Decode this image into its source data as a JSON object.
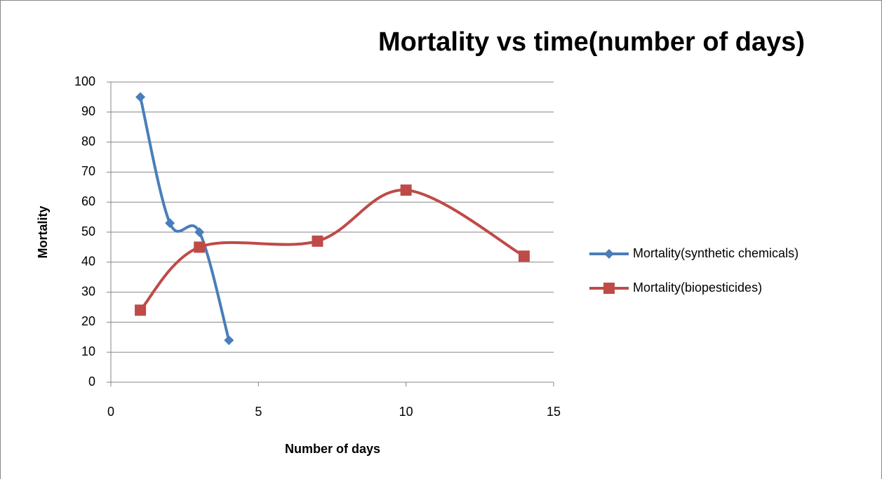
{
  "chart_data": {
    "type": "line",
    "smooth": true,
    "title": "Mortality vs time(number of days)",
    "xlabel": "Number of days",
    "ylabel": "Mortality",
    "series": [
      {
        "name": "Mortality(synthetic chemicals)",
        "color": "#4a7ebb",
        "marker": "diamond",
        "x": [
          1,
          2,
          3,
          4
        ],
        "values": [
          95,
          53,
          50,
          14
        ]
      },
      {
        "name": "Mortality(biopesticides)",
        "color": "#be4b48",
        "marker": "square",
        "x": [
          1,
          3,
          7,
          10,
          14
        ],
        "values": [
          24,
          45,
          47,
          64,
          42
        ]
      }
    ],
    "xlim": [
      0,
      15
    ],
    "xticks": [
      0,
      5,
      10,
      15
    ],
    "ylim": [
      0,
      100
    ],
    "yticks": [
      0,
      10,
      20,
      30,
      40,
      50,
      60,
      70,
      80,
      90,
      100
    ],
    "grid": true,
    "legend": "right"
  }
}
